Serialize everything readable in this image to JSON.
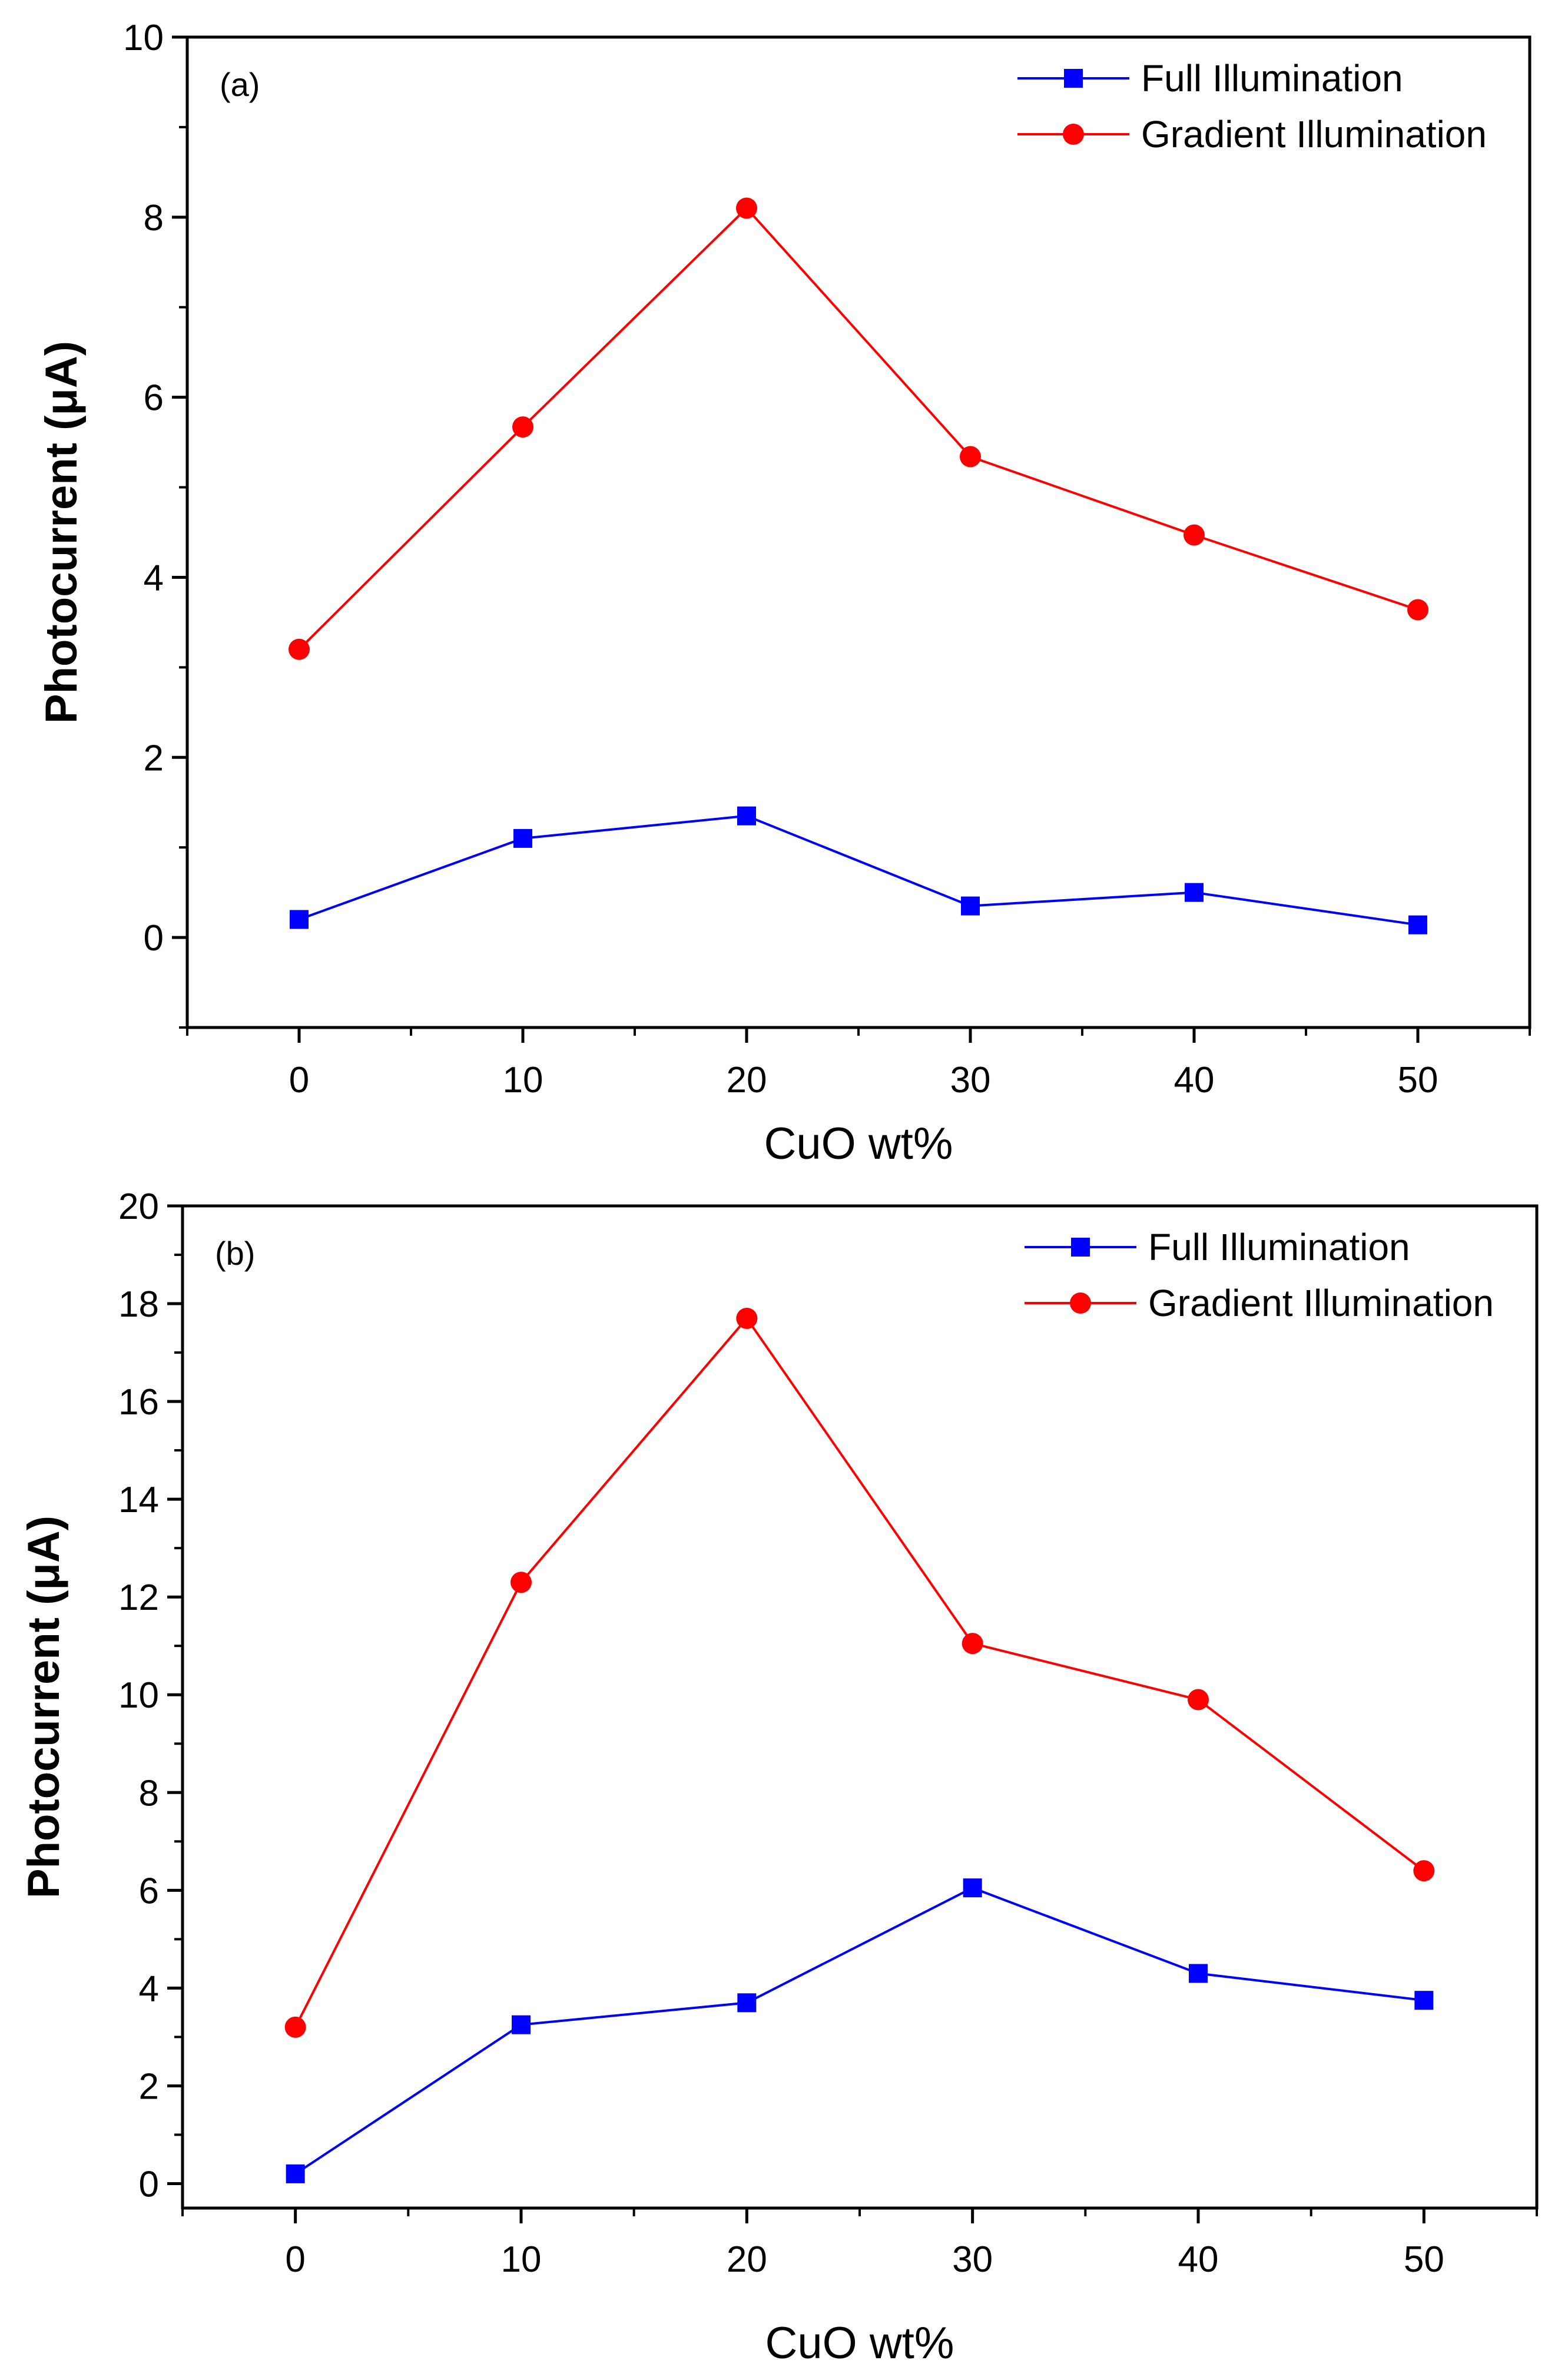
{
  "chart_data": [
    {
      "type": "line",
      "panel_label": "(a)",
      "xlabel": "CuO wt%",
      "ylabel": "Photocurrent (μA)",
      "x": [
        0,
        10,
        20,
        30,
        40,
        50
      ],
      "xlim": [
        -5,
        55
      ],
      "ylim": [
        -1,
        10
      ],
      "xticks": [
        0,
        10,
        20,
        30,
        40,
        50
      ],
      "yticks": [
        0,
        2,
        4,
        6,
        8,
        10
      ],
      "legend_position": "top-right",
      "series": [
        {
          "name": "Full Illumination",
          "marker": "square",
          "color": "#0000ff",
          "values": [
            0.2,
            1.1,
            1.35,
            0.35,
            0.5,
            0.14
          ]
        },
        {
          "name": "Gradient Illumination",
          "marker": "circle",
          "color": "#ff0000",
          "values": [
            3.2,
            5.67,
            8.1,
            5.34,
            4.47,
            3.64
          ]
        }
      ]
    },
    {
      "type": "line",
      "panel_label": "(b)",
      "xlabel": "CuO wt%",
      "ylabel": "Photocurrent (μA)",
      "x": [
        0,
        10,
        20,
        30,
        40,
        50
      ],
      "xlim": [
        -5,
        55
      ],
      "ylim": [
        -0.5,
        20
      ],
      "xticks": [
        0,
        10,
        20,
        30,
        40,
        50
      ],
      "yticks": [
        0,
        2,
        4,
        6,
        8,
        10,
        12,
        14,
        16,
        18,
        20
      ],
      "legend_position": "top-right",
      "series": [
        {
          "name": "Full Illumination",
          "marker": "square",
          "color": "#0000ff",
          "values": [
            0.2,
            3.25,
            3.7,
            6.05,
            4.3,
            3.75
          ]
        },
        {
          "name": "Gradient Illumination",
          "marker": "circle",
          "color": "#ff0000",
          "values": [
            3.2,
            12.3,
            17.7,
            11.05,
            9.9,
            6.4
          ]
        }
      ]
    }
  ]
}
